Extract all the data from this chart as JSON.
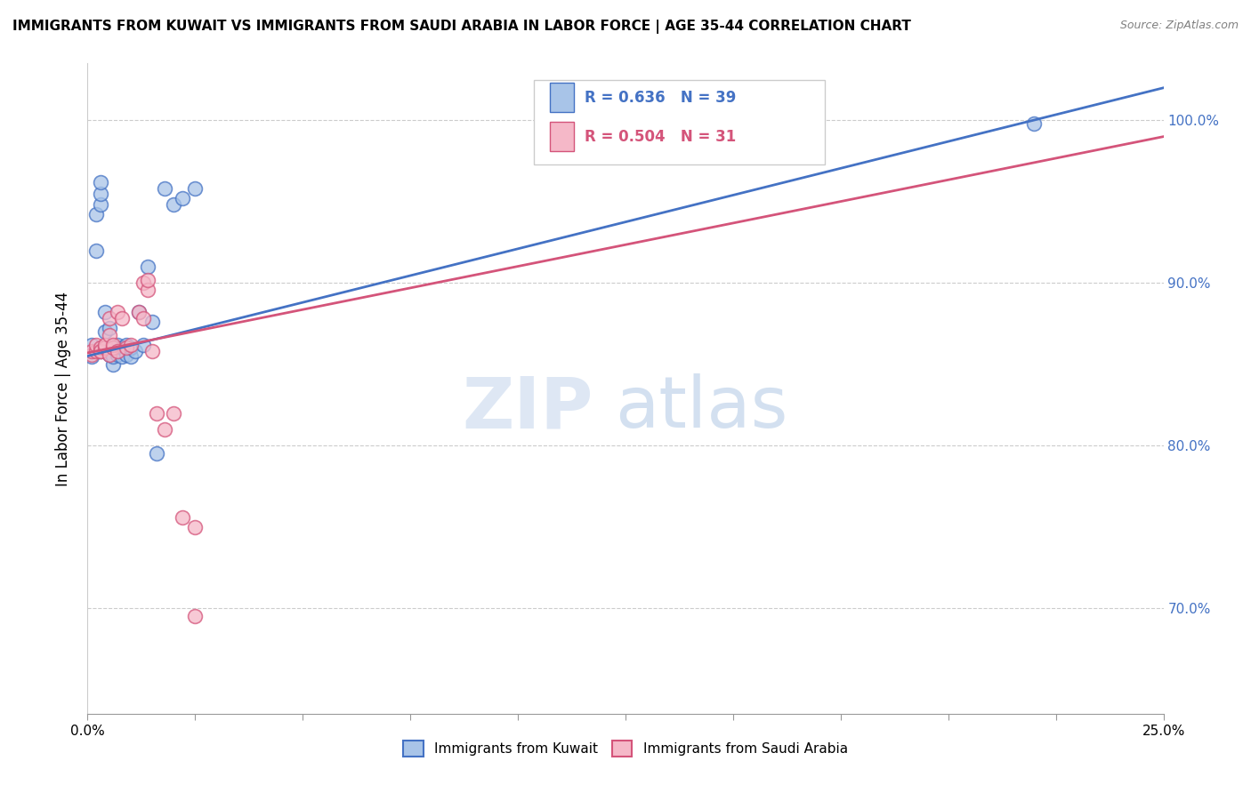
{
  "title": "IMMIGRANTS FROM KUWAIT VS IMMIGRANTS FROM SAUDI ARABIA IN LABOR FORCE | AGE 35-44 CORRELATION CHART",
  "source": "Source: ZipAtlas.com",
  "ylabel": "In Labor Force | Age 35-44",
  "legend_label1": "Immigrants from Kuwait",
  "legend_label2": "Immigrants from Saudi Arabia",
  "R1": 0.636,
  "N1": 39,
  "R2": 0.504,
  "N2": 31,
  "color1": "#a8c4e8",
  "color1_line": "#4472c4",
  "color2": "#f5b8c8",
  "color2_line": "#d4547a",
  "xlim": [
    0.0,
    0.25
  ],
  "ylim": [
    0.635,
    1.035
  ],
  "watermark_zip": "ZIP",
  "watermark_atlas": "atlas",
  "scatter1_x": [
    0.001,
    0.001,
    0.002,
    0.002,
    0.003,
    0.003,
    0.003,
    0.003,
    0.004,
    0.004,
    0.004,
    0.005,
    0.005,
    0.005,
    0.005,
    0.006,
    0.006,
    0.006,
    0.006,
    0.007,
    0.007,
    0.007,
    0.008,
    0.008,
    0.009,
    0.009,
    0.01,
    0.01,
    0.011,
    0.012,
    0.013,
    0.014,
    0.015,
    0.016,
    0.018,
    0.02,
    0.022,
    0.025,
    0.22
  ],
  "scatter1_y": [
    0.855,
    0.862,
    0.92,
    0.942,
    0.948,
    0.955,
    0.962,
    0.858,
    0.87,
    0.882,
    0.858,
    0.86,
    0.872,
    0.858,
    0.856,
    0.85,
    0.858,
    0.855,
    0.86,
    0.856,
    0.862,
    0.858,
    0.855,
    0.86,
    0.856,
    0.862,
    0.855,
    0.86,
    0.858,
    0.882,
    0.862,
    0.91,
    0.876,
    0.795,
    0.958,
    0.948,
    0.952,
    0.958,
    0.998
  ],
  "scatter2_x": [
    0.001,
    0.001,
    0.002,
    0.002,
    0.003,
    0.003,
    0.003,
    0.004,
    0.004,
    0.005,
    0.005,
    0.005,
    0.006,
    0.006,
    0.007,
    0.007,
    0.008,
    0.009,
    0.01,
    0.012,
    0.013,
    0.013,
    0.014,
    0.014,
    0.015,
    0.016,
    0.018,
    0.02,
    0.022,
    0.025,
    0.025
  ],
  "scatter2_y": [
    0.856,
    0.858,
    0.858,
    0.862,
    0.858,
    0.86,
    0.858,
    0.86,
    0.862,
    0.856,
    0.868,
    0.878,
    0.86,
    0.862,
    0.858,
    0.882,
    0.878,
    0.86,
    0.862,
    0.882,
    0.9,
    0.878,
    0.896,
    0.902,
    0.858,
    0.82,
    0.81,
    0.82,
    0.756,
    0.75,
    0.695
  ],
  "trendline1_x": [
    0.0,
    0.25
  ],
  "trendline1_y": [
    0.855,
    1.02
  ],
  "trendline2_x": [
    0.0,
    0.25
  ],
  "trendline2_y": [
    0.857,
    0.99
  ]
}
